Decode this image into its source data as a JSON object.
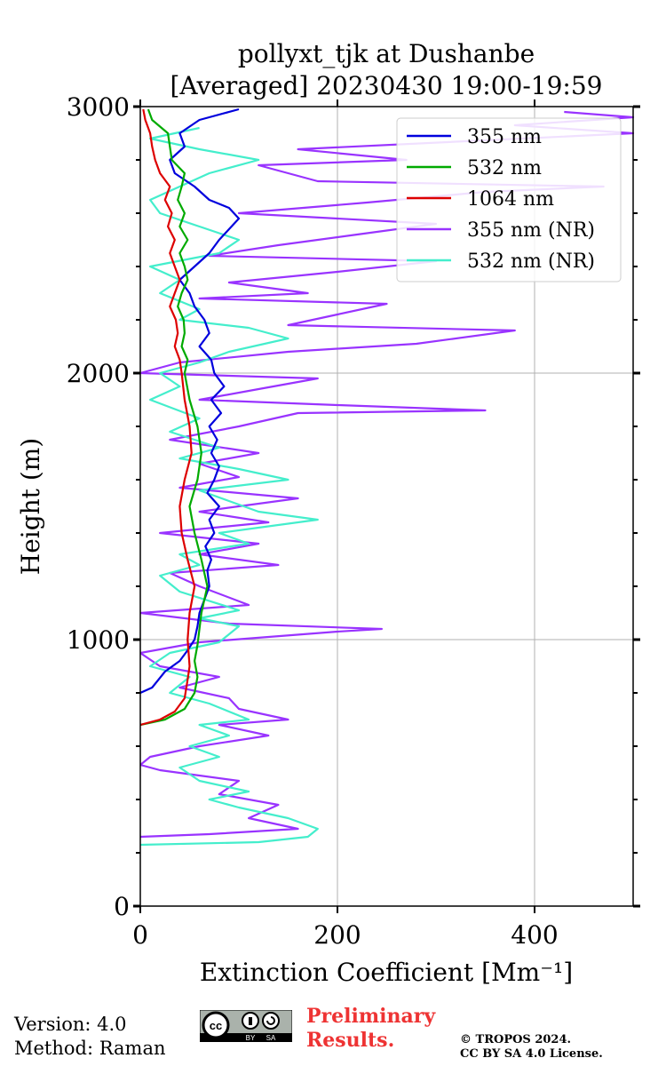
{
  "chart_data": {
    "type": "line",
    "title_line1": "pollyxt_tjk at Dushanbe",
    "title_line2": "[Averaged] 20230430 19:00-19:59",
    "xlabel": "Extinction Coefficient [Mm⁻¹]",
    "ylabel": "Height (m)",
    "xlim": [
      0,
      500
    ],
    "ylim": [
      0,
      3000
    ],
    "xticks": [
      "0",
      "200",
      "400"
    ],
    "yticks": [
      "0",
      "1000",
      "2000",
      "3000"
    ],
    "grid": true,
    "legend_position": "top-right",
    "series": [
      {
        "name": "355 nm",
        "color": "#0000dd",
        "points": [
          [
            0,
            800
          ],
          [
            12,
            820
          ],
          [
            25,
            880
          ],
          [
            40,
            920
          ],
          [
            48,
            960
          ],
          [
            55,
            1000
          ],
          [
            58,
            1050
          ],
          [
            60,
            1100
          ],
          [
            65,
            1150
          ],
          [
            70,
            1200
          ],
          [
            68,
            1260
          ],
          [
            72,
            1300
          ],
          [
            66,
            1350
          ],
          [
            75,
            1400
          ],
          [
            70,
            1450
          ],
          [
            80,
            1500
          ],
          [
            68,
            1550
          ],
          [
            75,
            1600
          ],
          [
            80,
            1650
          ],
          [
            72,
            1700
          ],
          [
            78,
            1750
          ],
          [
            70,
            1800
          ],
          [
            82,
            1850
          ],
          [
            72,
            1900
          ],
          [
            85,
            1950
          ],
          [
            75,
            2000
          ],
          [
            72,
            2050
          ],
          [
            60,
            2100
          ],
          [
            70,
            2150
          ],
          [
            65,
            2200
          ],
          [
            55,
            2250
          ],
          [
            50,
            2300
          ],
          [
            40,
            2350
          ],
          [
            55,
            2400
          ],
          [
            70,
            2450
          ],
          [
            80,
            2500
          ],
          [
            100,
            2580
          ],
          [
            90,
            2620
          ],
          [
            70,
            2650
          ],
          [
            55,
            2700
          ],
          [
            35,
            2750
          ],
          [
            30,
            2800
          ],
          [
            45,
            2850
          ],
          [
            40,
            2900
          ],
          [
            60,
            2950
          ],
          [
            100,
            2990
          ]
        ]
      },
      {
        "name": "532 nm",
        "color": "#00aa00",
        "points": [
          [
            0,
            680
          ],
          [
            25,
            700
          ],
          [
            45,
            740
          ],
          [
            55,
            800
          ],
          [
            58,
            860
          ],
          [
            55,
            920
          ],
          [
            58,
            980
          ],
          [
            60,
            1040
          ],
          [
            62,
            1100
          ],
          [
            68,
            1200
          ],
          [
            62,
            1300
          ],
          [
            55,
            1400
          ],
          [
            50,
            1500
          ],
          [
            58,
            1600
          ],
          [
            62,
            1700
          ],
          [
            58,
            1800
          ],
          [
            50,
            1900
          ],
          [
            45,
            2000
          ],
          [
            48,
            2050
          ],
          [
            42,
            2100
          ],
          [
            45,
            2150
          ],
          [
            44,
            2200
          ],
          [
            38,
            2250
          ],
          [
            42,
            2300
          ],
          [
            48,
            2350
          ],
          [
            45,
            2400
          ],
          [
            40,
            2450
          ],
          [
            48,
            2500
          ],
          [
            40,
            2550
          ],
          [
            45,
            2600
          ],
          [
            38,
            2650
          ],
          [
            42,
            2700
          ],
          [
            45,
            2750
          ],
          [
            32,
            2800
          ],
          [
            30,
            2850
          ],
          [
            28,
            2900
          ],
          [
            12,
            2950
          ],
          [
            8,
            2990
          ]
        ]
      },
      {
        "name": "1064 nm",
        "color": "#dd0000",
        "points": [
          [
            0,
            680
          ],
          [
            20,
            700
          ],
          [
            35,
            730
          ],
          [
            45,
            780
          ],
          [
            48,
            850
          ],
          [
            50,
            900
          ],
          [
            48,
            1000
          ],
          [
            50,
            1100
          ],
          [
            55,
            1200
          ],
          [
            48,
            1300
          ],
          [
            42,
            1400
          ],
          [
            40,
            1500
          ],
          [
            45,
            1600
          ],
          [
            52,
            1700
          ],
          [
            50,
            1800
          ],
          [
            45,
            1900
          ],
          [
            42,
            2000
          ],
          [
            40,
            2050
          ],
          [
            35,
            2100
          ],
          [
            38,
            2150
          ],
          [
            36,
            2200
          ],
          [
            30,
            2250
          ],
          [
            35,
            2300
          ],
          [
            40,
            2350
          ],
          [
            35,
            2400
          ],
          [
            30,
            2450
          ],
          [
            35,
            2500
          ],
          [
            28,
            2550
          ],
          [
            32,
            2600
          ],
          [
            25,
            2650
          ],
          [
            30,
            2700
          ],
          [
            20,
            2750
          ],
          [
            15,
            2800
          ],
          [
            12,
            2850
          ],
          [
            10,
            2900
          ],
          [
            5,
            2950
          ],
          [
            3,
            2990
          ]
        ]
      },
      {
        "name": "355 nm (NR)",
        "color": "#9933ff",
        "points": [
          [
            0,
            260
          ],
          [
            70,
            270
          ],
          [
            160,
            290
          ],
          [
            110,
            330
          ],
          [
            140,
            380
          ],
          [
            80,
            420
          ],
          [
            100,
            470
          ],
          [
            20,
            510
          ],
          [
            0,
            530
          ],
          [
            10,
            560
          ],
          [
            60,
            600
          ],
          [
            130,
            640
          ],
          [
            80,
            680
          ],
          [
            150,
            700
          ],
          [
            100,
            740
          ],
          [
            90,
            780
          ],
          [
            40,
            820
          ],
          [
            80,
            860
          ],
          [
            20,
            900
          ],
          [
            0,
            950
          ],
          [
            60,
            990
          ],
          [
            200,
            1030
          ],
          [
            245,
            1040
          ],
          [
            90,
            1060
          ],
          [
            0,
            1100
          ],
          [
            110,
            1130
          ],
          [
            60,
            1200
          ],
          [
            30,
            1250
          ],
          [
            140,
            1280
          ],
          [
            60,
            1320
          ],
          [
            120,
            1360
          ],
          [
            20,
            1400
          ],
          [
            130,
            1440
          ],
          [
            60,
            1480
          ],
          [
            160,
            1530
          ],
          [
            40,
            1570
          ],
          [
            100,
            1610
          ],
          [
            60,
            1660
          ],
          [
            120,
            1700
          ],
          [
            30,
            1750
          ],
          [
            100,
            1800
          ],
          [
            160,
            1850
          ],
          [
            350,
            1860
          ],
          [
            200,
            1880
          ],
          [
            60,
            1900
          ],
          [
            120,
            1940
          ],
          [
            180,
            1980
          ],
          [
            0,
            2000
          ],
          [
            40,
            2040
          ],
          [
            150,
            2080
          ],
          [
            280,
            2110
          ],
          [
            380,
            2160
          ],
          [
            150,
            2180
          ],
          [
            200,
            2220
          ],
          [
            250,
            2260
          ],
          [
            60,
            2280
          ],
          [
            170,
            2300
          ],
          [
            90,
            2340
          ],
          [
            200,
            2380
          ],
          [
            300,
            2420
          ],
          [
            70,
            2440
          ],
          [
            140,
            2480
          ],
          [
            220,
            2520
          ],
          [
            300,
            2560
          ],
          [
            100,
            2600
          ],
          [
            230,
            2640
          ],
          [
            350,
            2680
          ],
          [
            470,
            2700
          ],
          [
            180,
            2720
          ],
          [
            120,
            2780
          ],
          [
            270,
            2800
          ],
          [
            160,
            2840
          ],
          [
            500,
            2900
          ],
          [
            380,
            2930
          ],
          [
            500,
            2960
          ],
          [
            430,
            2980
          ]
        ]
      },
      {
        "name": "532 nm (NR)",
        "color": "#44eecc",
        "points": [
          [
            0,
            230
          ],
          [
            120,
            240
          ],
          [
            170,
            260
          ],
          [
            180,
            290
          ],
          [
            150,
            330
          ],
          [
            100,
            370
          ],
          [
            70,
            400
          ],
          [
            110,
            430
          ],
          [
            60,
            470
          ],
          [
            40,
            520
          ],
          [
            80,
            560
          ],
          [
            50,
            600
          ],
          [
            90,
            640
          ],
          [
            60,
            680
          ],
          [
            110,
            700
          ],
          [
            70,
            760
          ],
          [
            30,
            800
          ],
          [
            50,
            860
          ],
          [
            10,
            900
          ],
          [
            30,
            950
          ],
          [
            80,
            990
          ],
          [
            100,
            1050
          ],
          [
            60,
            1080
          ],
          [
            100,
            1110
          ],
          [
            40,
            1180
          ],
          [
            20,
            1240
          ],
          [
            60,
            1280
          ],
          [
            40,
            1320
          ],
          [
            110,
            1360
          ],
          [
            80,
            1400
          ],
          [
            180,
            1450
          ],
          [
            120,
            1480
          ],
          [
            90,
            1520
          ],
          [
            60,
            1560
          ],
          [
            150,
            1600
          ],
          [
            100,
            1640
          ],
          [
            40,
            1680
          ],
          [
            80,
            1720
          ],
          [
            30,
            1780
          ],
          [
            60,
            1830
          ],
          [
            10,
            1900
          ],
          [
            40,
            1950
          ],
          [
            20,
            2000
          ],
          [
            60,
            2040
          ],
          [
            90,
            2080
          ],
          [
            150,
            2130
          ],
          [
            110,
            2170
          ],
          [
            40,
            2200
          ],
          [
            60,
            2240
          ],
          [
            20,
            2300
          ],
          [
            40,
            2350
          ],
          [
            10,
            2400
          ],
          [
            80,
            2450
          ],
          [
            100,
            2500
          ],
          [
            60,
            2550
          ],
          [
            20,
            2600
          ],
          [
            10,
            2650
          ],
          [
            40,
            2700
          ],
          [
            70,
            2750
          ],
          [
            120,
            2800
          ],
          [
            60,
            2840
          ],
          [
            10,
            2880
          ],
          [
            60,
            2920
          ]
        ]
      }
    ]
  },
  "footer": {
    "version": "Version: 4.0",
    "method": "Method: Raman",
    "preliminary_line1": "Preliminary",
    "preliminary_line2": "Results.",
    "copyright_line1": "© TROPOS 2024.",
    "copyright_line2": "CC BY SA 4.0 License.",
    "badge_text_by": "BY",
    "badge_text_sa": "SA",
    "badge_text_cc": "cc"
  }
}
